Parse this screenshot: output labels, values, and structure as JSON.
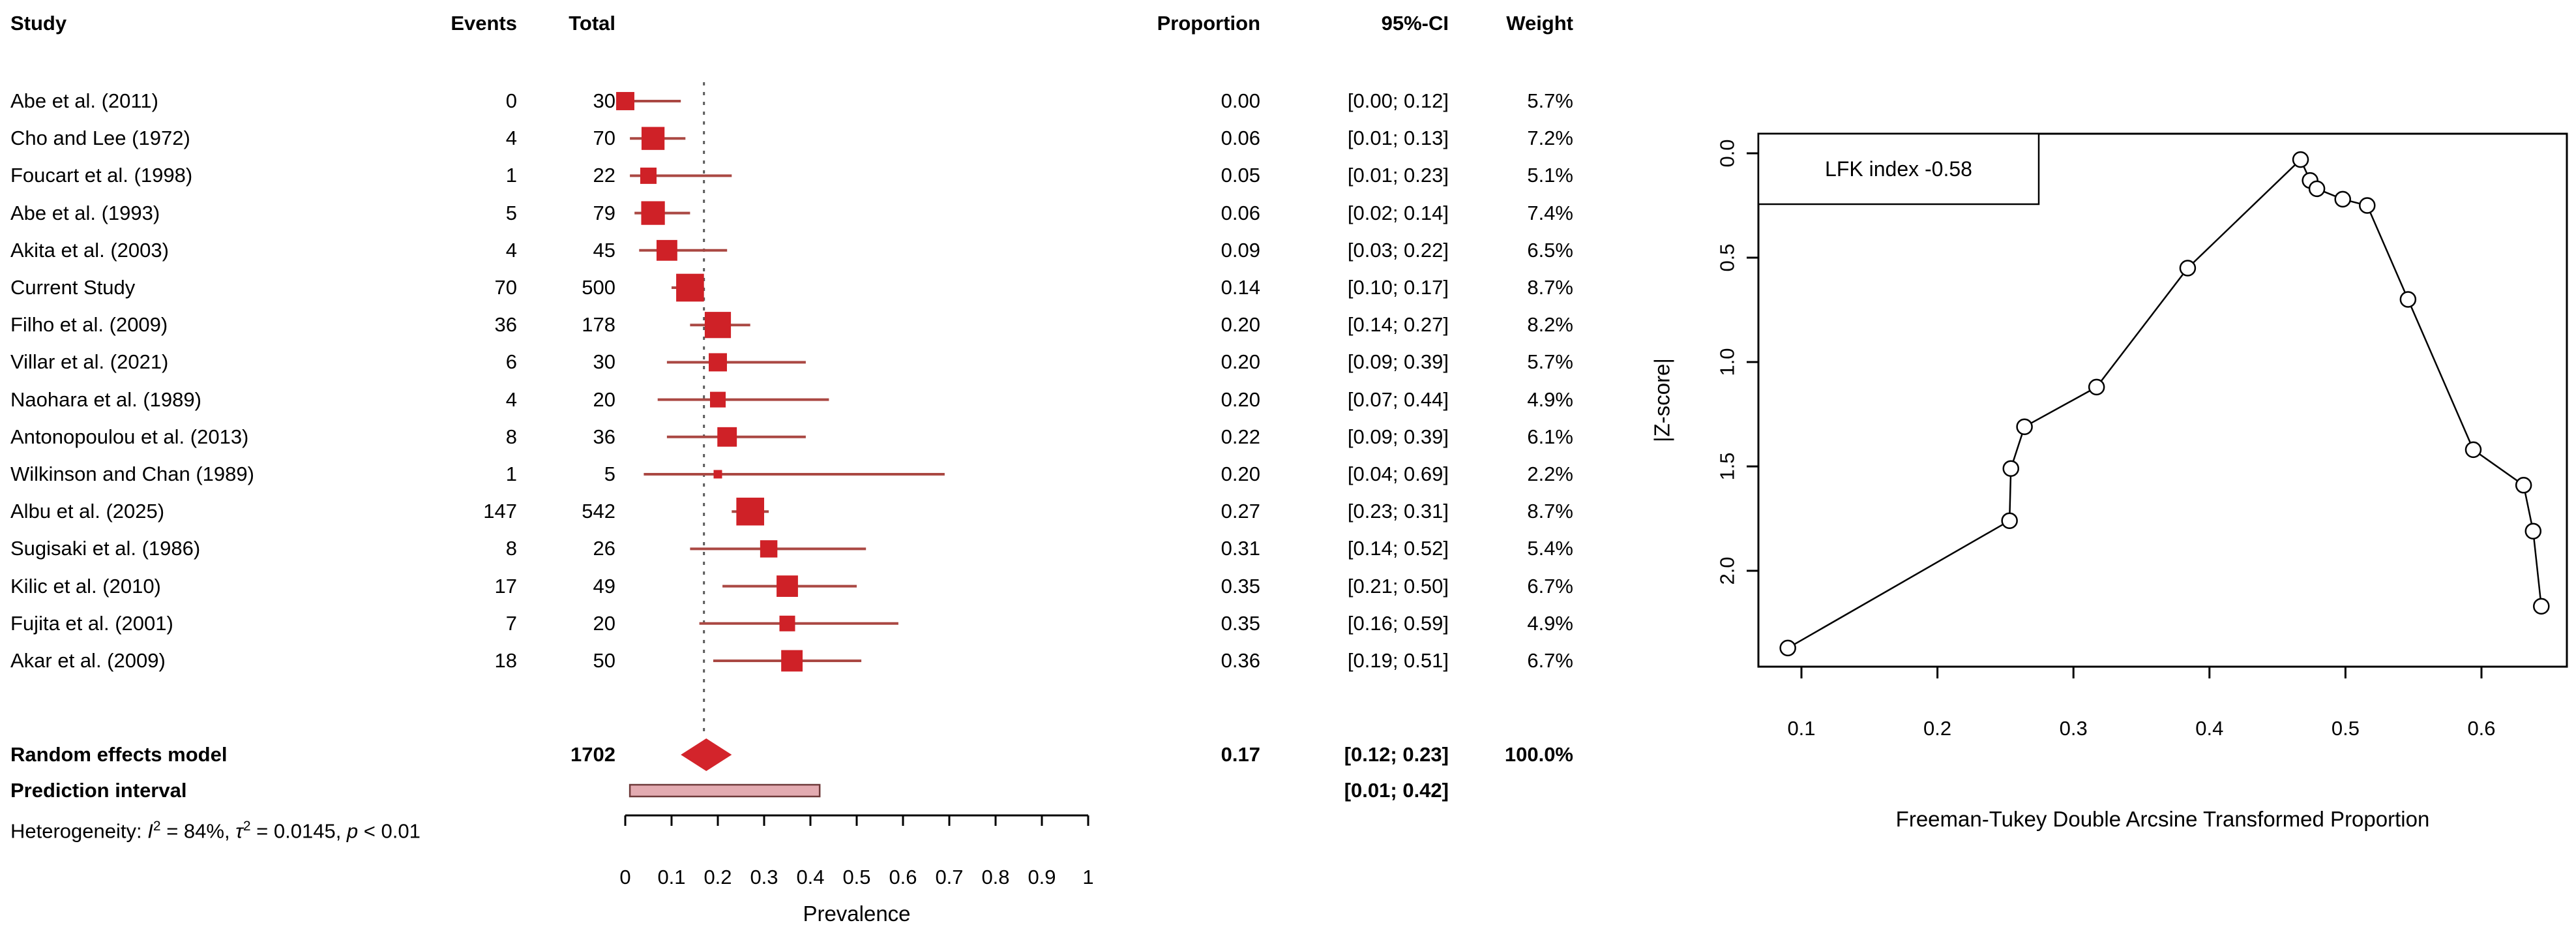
{
  "chart_data": [
    {
      "type": "forest",
      "columns": [
        "Study",
        "Events",
        "Total",
        "Proportion",
        "95%-CI",
        "Weight"
      ],
      "xlabel": "Prevalence",
      "xlim": [
        0,
        1
      ],
      "xticks": [
        "0",
        "0.1",
        "0.2",
        "0.3",
        "0.4",
        "0.5",
        "0.6",
        "0.7",
        "0.8",
        "0.9",
        "1"
      ],
      "pooled": 0.17,
      "rows": [
        {
          "study": "Abe et al. (2011)",
          "events": "0",
          "total": "30",
          "prop_text": "0.00",
          "p": 0.0,
          "lo": 0.0,
          "hi": 0.12,
          "ci_text": "[0.00; 0.12]",
          "weight_text": "5.7%",
          "weight": 5.7
        },
        {
          "study": "Cho and Lee (1972)",
          "events": "4",
          "total": "70",
          "prop_text": "0.06",
          "p": 0.06,
          "lo": 0.01,
          "hi": 0.13,
          "ci_text": "[0.01; 0.13]",
          "weight_text": "7.2%",
          "weight": 7.2
        },
        {
          "study": "Foucart et al. (1998)",
          "events": "1",
          "total": "22",
          "prop_text": "0.05",
          "p": 0.05,
          "lo": 0.01,
          "hi": 0.23,
          "ci_text": "[0.01; 0.23]",
          "weight_text": "5.1%",
          "weight": 5.1
        },
        {
          "study": "Abe et al. (1993)",
          "events": "5",
          "total": "79",
          "prop_text": "0.06",
          "p": 0.06,
          "lo": 0.02,
          "hi": 0.14,
          "ci_text": "[0.02; 0.14]",
          "weight_text": "7.4%",
          "weight": 7.4
        },
        {
          "study": "Akita et al. (2003)",
          "events": "4",
          "total": "45",
          "prop_text": "0.09",
          "p": 0.09,
          "lo": 0.03,
          "hi": 0.22,
          "ci_text": "[0.03; 0.22]",
          "weight_text": "6.5%",
          "weight": 6.5
        },
        {
          "study": "Current Study",
          "events": "70",
          "total": "500",
          "prop_text": "0.14",
          "p": 0.14,
          "lo": 0.1,
          "hi": 0.17,
          "ci_text": "[0.10; 0.17]",
          "weight_text": "8.7%",
          "weight": 8.7
        },
        {
          "study": "Filho et al. (2009)",
          "events": "36",
          "total": "178",
          "prop_text": "0.20",
          "p": 0.2,
          "lo": 0.14,
          "hi": 0.27,
          "ci_text": "[0.14; 0.27]",
          "weight_text": "8.2%",
          "weight": 8.2
        },
        {
          "study": "Villar et al. (2021)",
          "events": "6",
          "total": "30",
          "prop_text": "0.20",
          "p": 0.2,
          "lo": 0.09,
          "hi": 0.39,
          "ci_text": "[0.09; 0.39]",
          "weight_text": "5.7%",
          "weight": 5.7
        },
        {
          "study": "Naohara et al. (1989)",
          "events": "4",
          "total": "20",
          "prop_text": "0.20",
          "p": 0.2,
          "lo": 0.07,
          "hi": 0.44,
          "ci_text": "[0.07; 0.44]",
          "weight_text": "4.9%",
          "weight": 4.9
        },
        {
          "study": "Antonopoulou et al. (2013)",
          "events": "8",
          "total": "36",
          "prop_text": "0.22",
          "p": 0.22,
          "lo": 0.09,
          "hi": 0.39,
          "ci_text": "[0.09; 0.39]",
          "weight_text": "6.1%",
          "weight": 6.1
        },
        {
          "study": "Wilkinson and Chan (1989)",
          "events": "1",
          "total": "5",
          "prop_text": "0.20",
          "p": 0.2,
          "lo": 0.04,
          "hi": 0.69,
          "ci_text": "[0.04; 0.69]",
          "weight_text": "2.2%",
          "weight": 2.2
        },
        {
          "study": "Albu et al. (2025)",
          "events": "147",
          "total": "542",
          "prop_text": "0.27",
          "p": 0.27,
          "lo": 0.23,
          "hi": 0.31,
          "ci_text": "[0.23; 0.31]",
          "weight_text": "8.7%",
          "weight": 8.7
        },
        {
          "study": "Sugisaki et al. (1986)",
          "events": "8",
          "total": "26",
          "prop_text": "0.31",
          "p": 0.31,
          "lo": 0.14,
          "hi": 0.52,
          "ci_text": "[0.14; 0.52]",
          "weight_text": "5.4%",
          "weight": 5.4
        },
        {
          "study": "Kilic et al. (2010)",
          "events": "17",
          "total": "49",
          "prop_text": "0.35",
          "p": 0.35,
          "lo": 0.21,
          "hi": 0.5,
          "ci_text": "[0.21; 0.50]",
          "weight_text": "6.7%",
          "weight": 6.7
        },
        {
          "study": "Fujita et al. (2001)",
          "events": "7",
          "total": "20",
          "prop_text": "0.35",
          "p": 0.35,
          "lo": 0.16,
          "hi": 0.59,
          "ci_text": "[0.16; 0.59]",
          "weight_text": "4.9%",
          "weight": 4.9
        },
        {
          "study": "Akar et al. (2009)",
          "events": "18",
          "total": "50",
          "prop_text": "0.36",
          "p": 0.36,
          "lo": 0.19,
          "hi": 0.51,
          "ci_text": "[0.19; 0.51]",
          "weight_text": "6.7%",
          "weight": 6.7
        }
      ],
      "summary": {
        "label": "Random effects model",
        "total": "1702",
        "prop_text": "0.17",
        "p": 0.17,
        "lo": 0.12,
        "hi": 0.23,
        "ci_text": "[0.12; 0.23]",
        "weight_text": "100.0%"
      },
      "prediction": {
        "label": "Prediction interval",
        "lo": 0.01,
        "hi": 0.42,
        "ci_text": "[0.01; 0.42]"
      },
      "heterogeneity": {
        "prefix": "Heterogeneity: ",
        "i_sym": "I",
        "i_sup": "2",
        "seg1": " = 84%, ",
        "tau_sym": "τ",
        "tau_sup": "2",
        "seg2": " = 0.0145, ",
        "p_sym": "p",
        "seg3": " < 0.01"
      }
    },
    {
      "type": "line",
      "legend": "LFK index -0.58",
      "xlabel": "Freeman-Tukey Double Arcsine Transformed Proportion",
      "ylabel": "|Z-score|",
      "xticks": [
        "0.1",
        "0.2",
        "0.3",
        "0.4",
        "0.5",
        "0.6"
      ],
      "yticks": [
        "0.0",
        "0.5",
        "1.0",
        "1.5",
        "2.0"
      ],
      "xlim": [
        0.068,
        0.665
      ],
      "ylim": [
        -0.09,
        2.46
      ],
      "y_reversed": true,
      "x": [
        0.09,
        0.253,
        0.254,
        0.264,
        0.317,
        0.384,
        0.467,
        0.474,
        0.479,
        0.498,
        0.516,
        0.546,
        0.594,
        0.631,
        0.638,
        0.644
      ],
      "y": [
        2.37,
        1.76,
        1.51,
        1.31,
        1.12,
        0.55,
        0.03,
        0.13,
        0.17,
        0.22,
        0.25,
        0.7,
        1.42,
        1.59,
        1.81,
        2.17
      ]
    }
  ],
  "colors": {
    "square": "#cf2127",
    "whisker": "#aa4843",
    "diamond": "#d3242b",
    "prediction_fill": "#e3abb1",
    "prediction_border": "#6e3a3a",
    "dotted_line": "#595959",
    "axis": "#000000"
  }
}
